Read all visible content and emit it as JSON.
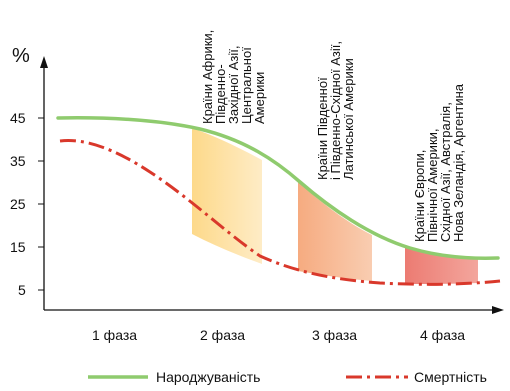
{
  "y_unit": "%",
  "y_ticks": [
    "45",
    "35",
    "25",
    "15",
    "5"
  ],
  "phases": [
    "1 фаза",
    "2 фаза",
    "3 фаза",
    "4 фаза"
  ],
  "region_labels": [
    [
      "Країни Африки,",
      "Південно-",
      "Західної Азії,",
      "Центральної",
      "Америки"
    ],
    [
      "Країни Південної",
      "і Південно-Східної Азії,",
      "Латинської Америки"
    ],
    [
      "Країни Європи,",
      "Північної Америки,",
      "Східної Азії, Австралія,",
      "Нова Зеландія, Аргентина"
    ]
  ],
  "legend": {
    "birth": "Народжуваність",
    "death": "Смертність"
  },
  "colors": {
    "birth": "#8fcb6e",
    "death": "#d9382b",
    "phase2_fill": "#fde3a0",
    "phase3_fill": "#f7bb98",
    "phase4_fill": "#ef8a80"
  }
}
